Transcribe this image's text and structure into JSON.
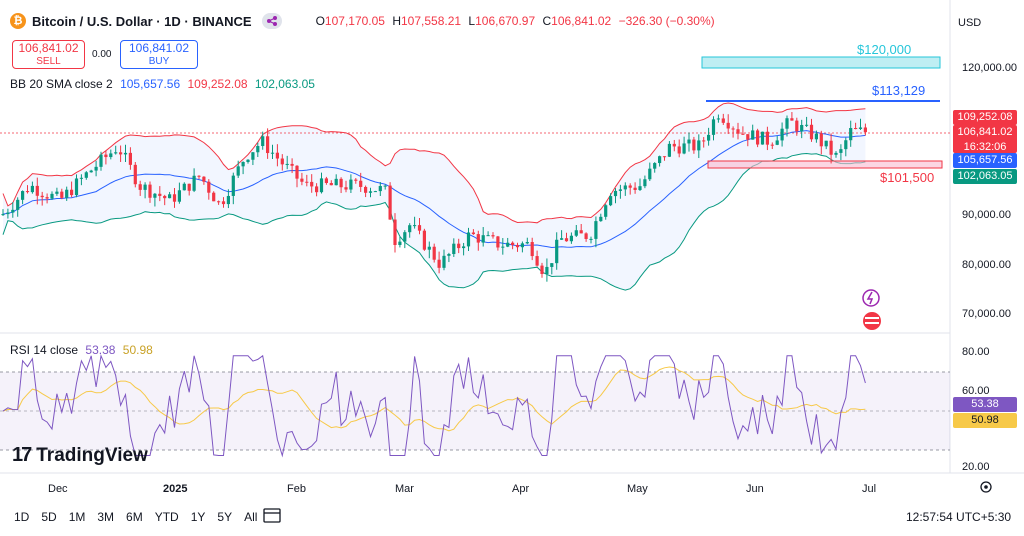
{
  "header": {
    "coin_letter": "₿",
    "symbol": "Bitcoin / U.S. Dollar · 1D · BINANCE",
    "o_label": "O",
    "o_value": "107,170.05",
    "h_label": "H",
    "h_value": "107,558.21",
    "l_label": "L",
    "l_value": "106,670.97",
    "c_label": "C",
    "c_value": "106,841.02",
    "change": "−326.30 (−0.30%)"
  },
  "trade": {
    "sell_price": "106,841.02",
    "sell_label": "SELL",
    "spread": "0.00",
    "buy_price": "106,841.02",
    "buy_label": "BUY"
  },
  "bb": {
    "label": "BB 20 SMA close 2",
    "basis": "105,657.56",
    "upper": "109,252.08",
    "lower": "102,063.05",
    "upper_color": "#f23645",
    "basis_color": "#2962ff",
    "lower_color": "#089981"
  },
  "rsi": {
    "label": "RSI 14 close",
    "value": "53.38",
    "ma": "50.98",
    "color": "#7e57c2",
    "ma_color": "#f7c948"
  },
  "currency": "USD",
  "price_axis": [
    "120,000.00",
    "90,000.00",
    "80,000.00",
    "70,000.00"
  ],
  "rsi_axis": [
    "80.00",
    "60.00",
    "20.00"
  ],
  "price_labels": {
    "upper": "109,252.08",
    "last": "106,841.02",
    "countdown": "16:32:06",
    "basis": "105,657.56",
    "lower": "102,063.05",
    "rsi": "53.38",
    "rsi_ma": "50.98"
  },
  "annotations": {
    "a1": "$120,000",
    "a2": "$113,129",
    "a3": "$101,500"
  },
  "time_axis": [
    "Dec",
    "2025",
    "Feb",
    "Mar",
    "Apr",
    "May",
    "Jun",
    "Jul"
  ],
  "timeframes": [
    "1D",
    "5D",
    "1M",
    "3M",
    "6M",
    "YTD",
    "1Y",
    "5Y",
    "All"
  ],
  "clock": "12:57:54 UTC+5:30",
  "brand": "TradingView",
  "brand_logo": "17"
}
